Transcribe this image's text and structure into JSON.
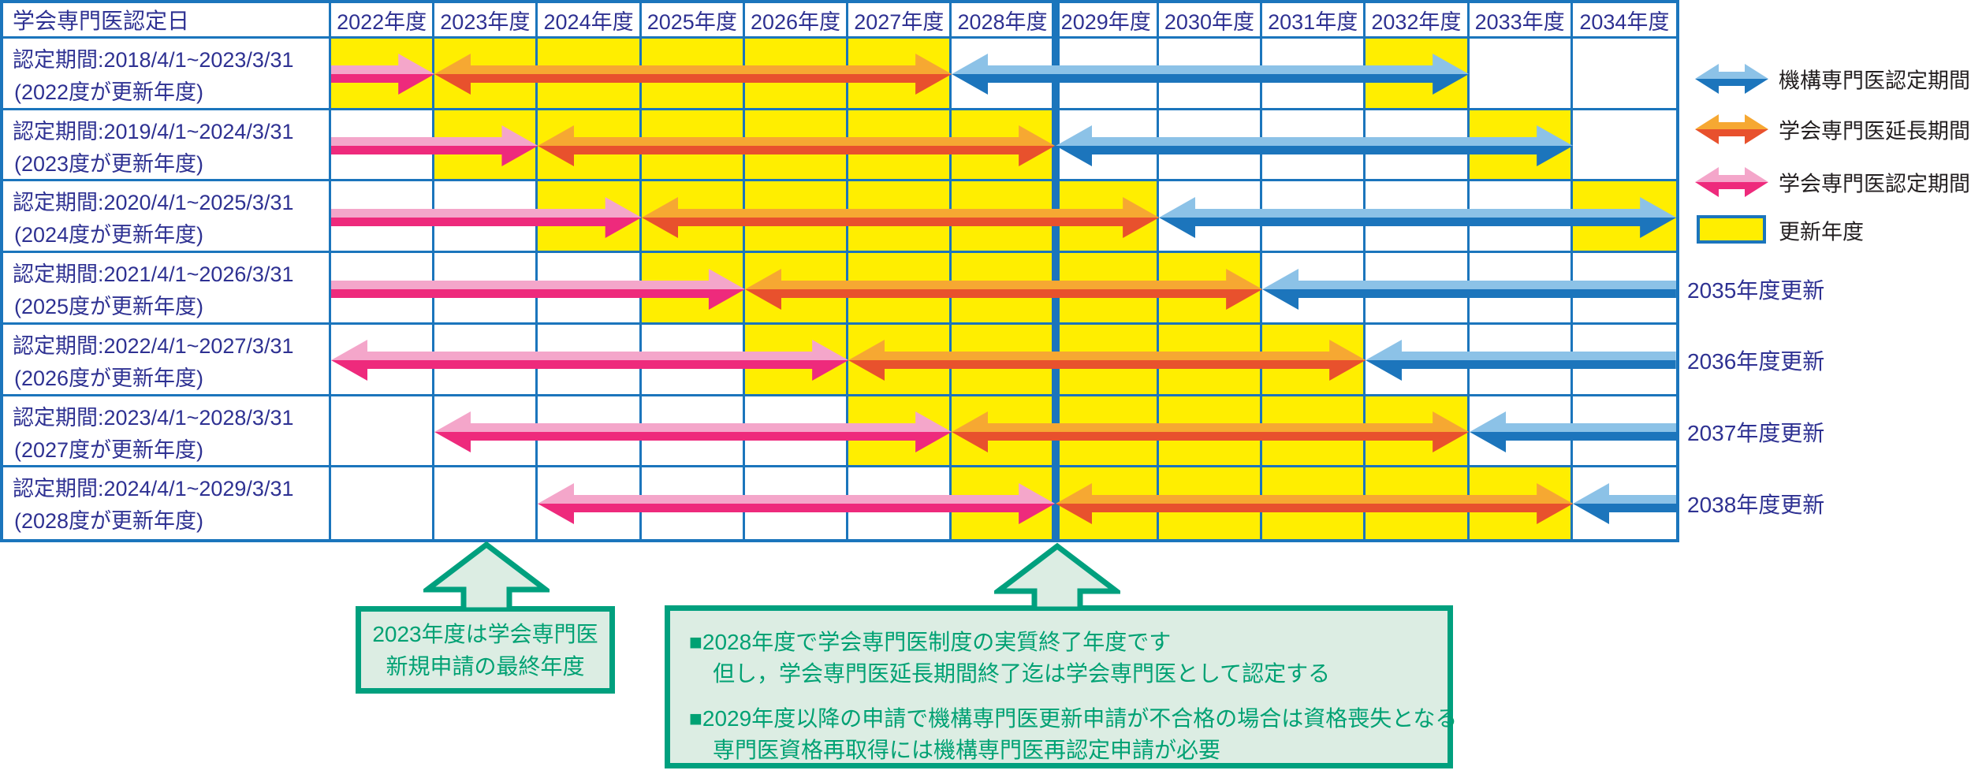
{
  "colors": {
    "grid_blue": "#1B75BC",
    "navy_text": "#2E3192",
    "yellow": "#FFEE00",
    "pink_light": "#F4A6CA",
    "pink_dark": "#EE2A7C",
    "orange_light": "#F6A832",
    "orange_dark": "#E8512D",
    "blue_light": "#8CC2E7",
    "blue_dark": "#1C75BC",
    "green_border": "#00A07E",
    "green_fill": "#DCEDE3",
    "green_text": "#00A173",
    "legend_text": "#231F20"
  },
  "table": {
    "corner_header": "学会専門医認定日",
    "heavy_divider_between": [
      "2028年度",
      "2029年度"
    ]
  },
  "chart_data": {
    "type": "gantt",
    "title": "学会専門医認定日",
    "categories": [
      "2022年度",
      "2023年度",
      "2024年度",
      "2025年度",
      "2026年度",
      "2027年度",
      "2028年度",
      "2029年度",
      "2030年度",
      "2031年度",
      "2032年度",
      "2033年度",
      "2034年度"
    ],
    "first_column_year": 2022,
    "legend_position": "right",
    "rows": [
      {
        "label": "認定期間:2018/4/1~2023/3/31",
        "sublabel": "(2022度が更新年度)",
        "right_label": "",
        "yellow_spans": [
          [
            0,
            6
          ],
          [
            10,
            11
          ]
        ],
        "arrows": [
          {
            "kind": "society_cert",
            "from": 0,
            "to": 1,
            "head_left": false,
            "head_right": true
          },
          {
            "kind": "society_ext",
            "from": 1,
            "to": 6,
            "head_left": true,
            "head_right": true
          },
          {
            "kind": "org_cert",
            "from": 6,
            "to": 11,
            "head_left": true,
            "head_right": true
          }
        ]
      },
      {
        "label": "認定期間:2019/4/1~2024/3/31",
        "sublabel": "(2023度が更新年度)",
        "right_label": "",
        "yellow_spans": [
          [
            1,
            7
          ],
          [
            11,
            12
          ]
        ],
        "arrows": [
          {
            "kind": "society_cert",
            "from": 0,
            "to": 2,
            "head_left": false,
            "head_right": true
          },
          {
            "kind": "society_ext",
            "from": 2,
            "to": 7,
            "head_left": true,
            "head_right": true
          },
          {
            "kind": "org_cert",
            "from": 7,
            "to": 12,
            "head_left": true,
            "head_right": true
          }
        ]
      },
      {
        "label": "認定期間:2020/4/1~2025/3/31",
        "sublabel": "(2024度が更新年度)",
        "right_label": "",
        "yellow_spans": [
          [
            2,
            8
          ],
          [
            12,
            13
          ]
        ],
        "arrows": [
          {
            "kind": "society_cert",
            "from": 0,
            "to": 3,
            "head_left": false,
            "head_right": true
          },
          {
            "kind": "society_ext",
            "from": 3,
            "to": 8,
            "head_left": true,
            "head_right": true
          },
          {
            "kind": "org_cert",
            "from": 8,
            "to": 13,
            "head_left": true,
            "head_right": true
          }
        ]
      },
      {
        "label": "認定期間:2021/4/1~2026/3/31",
        "sublabel": "(2025度が更新年度)",
        "right_label": "2035年度更新",
        "yellow_spans": [
          [
            3,
            9
          ]
        ],
        "arrows": [
          {
            "kind": "society_cert",
            "from": 0,
            "to": 4,
            "head_left": false,
            "head_right": true
          },
          {
            "kind": "society_ext",
            "from": 4,
            "to": 9,
            "head_left": true,
            "head_right": true
          },
          {
            "kind": "org_cert",
            "from": 9,
            "to": 13,
            "head_left": true,
            "head_right": false
          }
        ]
      },
      {
        "label": "認定期間:2022/4/1~2027/3/31",
        "sublabel": "(2026度が更新年度)",
        "right_label": "2036年度更新",
        "yellow_spans": [
          [
            4,
            10
          ]
        ],
        "arrows": [
          {
            "kind": "society_cert",
            "from": 0,
            "to": 5,
            "head_left": true,
            "head_right": true
          },
          {
            "kind": "society_ext",
            "from": 5,
            "to": 10,
            "head_left": true,
            "head_right": true
          },
          {
            "kind": "org_cert",
            "from": 10,
            "to": 13,
            "head_left": true,
            "head_right": false
          }
        ]
      },
      {
        "label": "認定期間:2023/4/1~2028/3/31",
        "sublabel": "(2027度が更新年度)",
        "right_label": "2037年度更新",
        "yellow_spans": [
          [
            5,
            11
          ]
        ],
        "arrows": [
          {
            "kind": "society_cert",
            "from": 1,
            "to": 6,
            "head_left": true,
            "head_right": true
          },
          {
            "kind": "society_ext",
            "from": 6,
            "to": 11,
            "head_left": true,
            "head_right": true
          },
          {
            "kind": "org_cert",
            "from": 11,
            "to": 13,
            "head_left": true,
            "head_right": false
          }
        ]
      },
      {
        "label": "認定期間:2024/4/1~2029/3/31",
        "sublabel": "(2028度が更新年度)",
        "right_label": "2038年度更新",
        "yellow_spans": [
          [
            6,
            12
          ]
        ],
        "arrows": [
          {
            "kind": "society_cert",
            "from": 2,
            "to": 7,
            "head_left": true,
            "head_right": true
          },
          {
            "kind": "society_ext",
            "from": 7,
            "to": 12,
            "head_left": true,
            "head_right": true
          },
          {
            "kind": "org_cert",
            "from": 12,
            "to": 13,
            "head_left": true,
            "head_right": false
          }
        ]
      }
    ]
  },
  "legend": {
    "items": [
      {
        "kind": "org_cert",
        "label": "機構専門医認定期間"
      },
      {
        "kind": "society_ext",
        "label": "学会専門医延長期間"
      },
      {
        "kind": "society_cert",
        "label": "学会専門医認定期間"
      },
      {
        "kind": "update_year",
        "label": "更新年度"
      }
    ]
  },
  "callouts": [
    {
      "lines": [
        "2023年度は学会専門医",
        "新規申請の最終年度"
      ],
      "points_at": "2023年度"
    },
    {
      "lines": [
        "■2028年度で学会専門医制度の実質終了年度です",
        "但し，学会専門医延長期間終了迄は学会専門医として認定する",
        "■2029年度以降の申請で機構専門医更新申請が不合格の場合は資格喪失となる",
        "専門医資格再取得には機構専門医再認定申請が必要"
      ],
      "points_at": "2028年度/2029年度境界"
    }
  ]
}
